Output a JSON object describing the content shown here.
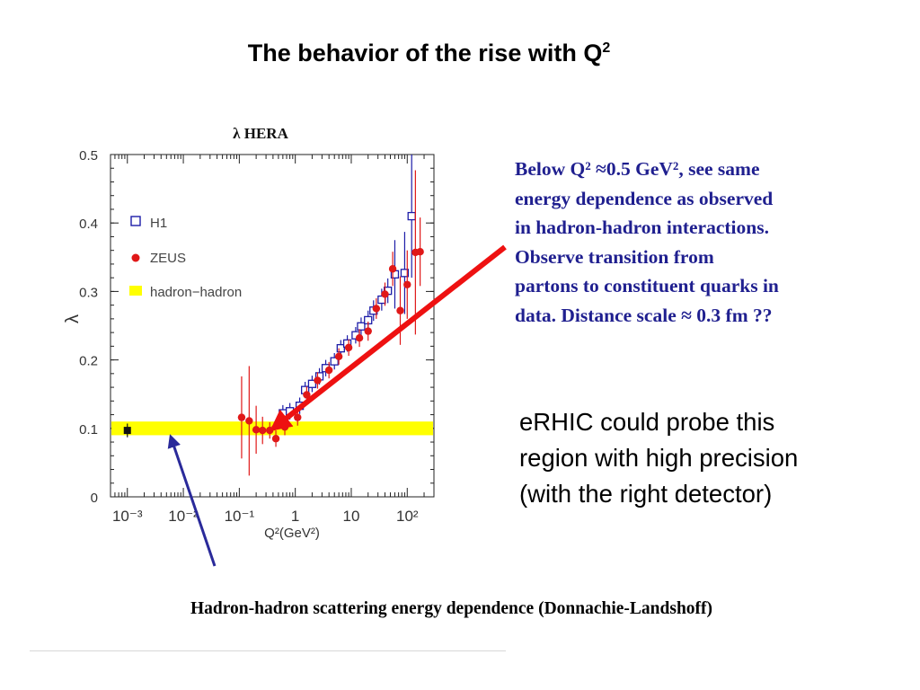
{
  "slide": {
    "title_main": "The behavior of the rise with Q",
    "title_sup": "2",
    "note_lines": [
      "Below Q² ≈0.5 GeV², see same",
      "energy dependence as observed",
      "in hadron-hadron interactions.",
      "Observe transition from",
      "partons to constituent quarks in",
      "data. Distance scale ≈ 0.3 fm ??"
    ],
    "erhic_lines": [
      "eRHIC could probe this",
      "region with high precision",
      "(with the right detector)"
    ],
    "caption": "Hadron-hadron scattering energy dependence (Donnachie-Landshoff)"
  },
  "colors": {
    "h1": "#1c1ca8",
    "zeus": "#e01818",
    "band": "#ffff00",
    "red_arrow": "#ee1111",
    "blue_arrow": "#2a2a9a",
    "note_text": "#1f1f8f"
  },
  "chart_data": {
    "type": "scatter",
    "title": "λ HERA",
    "xlabel": "Q²(GeV²)",
    "ylabel": "λ",
    "x_scale": "log",
    "xlim": [
      0.0005,
      300
    ],
    "ylim": [
      0,
      0.5
    ],
    "yticks": [
      "0",
      "0.1",
      "0.2",
      "0.3",
      "0.4",
      "0.5"
    ],
    "xticks": [
      {
        "value": 0.001,
        "label": "10⁻³"
      },
      {
        "value": 0.01,
        "label": "10⁻²"
      },
      {
        "value": 0.1,
        "label": "10⁻¹"
      },
      {
        "value": 1,
        "label": "1"
      },
      {
        "value": 10,
        "label": "10"
      },
      {
        "value": 100,
        "label": "10²"
      }
    ],
    "legend_position": "top-left",
    "band": {
      "name": "hadron−hadron",
      "y_low": 0.09,
      "y_high": 0.11,
      "point": {
        "x": 0.001,
        "y": 0.097,
        "err": 0.01
      }
    },
    "series": [
      {
        "name": "H1",
        "marker": "open-square",
        "points": [
          {
            "x": 0.6,
            "y": 0.122,
            "err": 0.012
          },
          {
            "x": 0.8,
            "y": 0.125,
            "err": 0.012
          },
          {
            "x": 1.2,
            "y": 0.133,
            "err": 0.012
          },
          {
            "x": 1.5,
            "y": 0.156,
            "err": 0.012
          },
          {
            "x": 2.0,
            "y": 0.165,
            "err": 0.012
          },
          {
            "x": 2.7,
            "y": 0.176,
            "err": 0.012
          },
          {
            "x": 3.5,
            "y": 0.188,
            "err": 0.012
          },
          {
            "x": 5.0,
            "y": 0.198,
            "err": 0.012
          },
          {
            "x": 6.5,
            "y": 0.217,
            "err": 0.012
          },
          {
            "x": 8.5,
            "y": 0.224,
            "err": 0.012
          },
          {
            "x": 12,
            "y": 0.236,
            "err": 0.012
          },
          {
            "x": 15,
            "y": 0.249,
            "err": 0.013
          },
          {
            "x": 20,
            "y": 0.258,
            "err": 0.014
          },
          {
            "x": 25,
            "y": 0.272,
            "err": 0.015
          },
          {
            "x": 35,
            "y": 0.288,
            "err": 0.016
          },
          {
            "x": 45,
            "y": 0.301,
            "err": 0.018
          },
          {
            "x": 60,
            "y": 0.325,
            "err": 0.05
          },
          {
            "x": 90,
            "y": 0.327,
            "err": 0.06
          },
          {
            "x": 120,
            "y": 0.41,
            "err": 0.09
          }
        ]
      },
      {
        "name": "ZEUS",
        "marker": "filled-circle",
        "points": [
          {
            "x": 0.11,
            "y": 0.116,
            "err": 0.06
          },
          {
            "x": 0.15,
            "y": 0.111,
            "err": 0.08
          },
          {
            "x": 0.2,
            "y": 0.098,
            "err": 0.035
          },
          {
            "x": 0.26,
            "y": 0.097,
            "err": 0.02
          },
          {
            "x": 0.35,
            "y": 0.097,
            "err": 0.012
          },
          {
            "x": 0.45,
            "y": 0.085,
            "err": 0.012
          },
          {
            "x": 0.65,
            "y": 0.102,
            "err": 0.012
          },
          {
            "x": 1.1,
            "y": 0.116,
            "err": 0.012
          },
          {
            "x": 1.6,
            "y": 0.149,
            "err": 0.012
          },
          {
            "x": 2.5,
            "y": 0.17,
            "err": 0.012
          },
          {
            "x": 4.0,
            "y": 0.185,
            "err": 0.012
          },
          {
            "x": 6.0,
            "y": 0.205,
            "err": 0.012
          },
          {
            "x": 9.0,
            "y": 0.218,
            "err": 0.012
          },
          {
            "x": 14,
            "y": 0.232,
            "err": 0.013
          },
          {
            "x": 20,
            "y": 0.242,
            "err": 0.014
          },
          {
            "x": 28,
            "y": 0.275,
            "err": 0.015
          },
          {
            "x": 40,
            "y": 0.296,
            "err": 0.017
          },
          {
            "x": 55,
            "y": 0.333,
            "err": 0.025
          },
          {
            "x": 75,
            "y": 0.272,
            "err": 0.05
          },
          {
            "x": 100,
            "y": 0.31,
            "err": 0.05
          },
          {
            "x": 140,
            "y": 0.357,
            "err": 0.12
          },
          {
            "x": 170,
            "y": 0.358,
            "err": 0.05
          }
        ]
      }
    ]
  }
}
